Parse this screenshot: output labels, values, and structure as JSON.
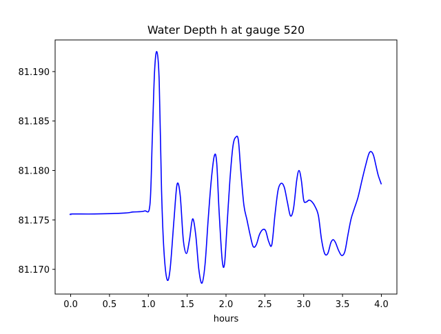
{
  "chart_data": {
    "type": "line",
    "title": "Water Depth h at gauge 520",
    "xlabel": "hours",
    "ylabel": "",
    "xlim": [
      -0.2,
      4.2
    ],
    "ylim": [
      81.1675,
      81.1932
    ],
    "x_ticks": [
      0.0,
      0.5,
      1.0,
      1.5,
      2.0,
      2.5,
      3.0,
      3.5,
      4.0
    ],
    "x_tick_labels": [
      "0.0",
      "0.5",
      "1.0",
      "1.5",
      "2.0",
      "2.5",
      "3.0",
      "3.5",
      "4.0"
    ],
    "y_ticks": [
      81.17,
      81.175,
      81.18,
      81.185,
      81.19
    ],
    "y_tick_labels": [
      "81.170",
      "81.175",
      "81.180",
      "81.185",
      "81.190"
    ],
    "grid": false,
    "legend": "none",
    "series": [
      {
        "color": "#0000ff",
        "x": [
          0.0,
          0.02,
          0.3,
          0.7,
          0.8,
          0.95,
          1.02,
          1.05,
          1.08,
          1.11,
          1.14,
          1.17,
          1.2,
          1.24,
          1.28,
          1.33,
          1.37,
          1.41,
          1.45,
          1.49,
          1.53,
          1.57,
          1.61,
          1.65,
          1.69,
          1.73,
          1.77,
          1.81,
          1.85,
          1.88,
          1.91,
          1.95,
          1.98,
          2.01,
          2.05,
          2.09,
          2.13,
          2.16,
          2.19,
          2.23,
          2.27,
          2.31,
          2.35,
          2.39,
          2.43,
          2.47,
          2.51,
          2.55,
          2.59,
          2.63,
          2.67,
          2.71,
          2.75,
          2.79,
          2.83,
          2.87,
          2.91,
          2.94,
          2.97,
          3.0,
          3.03,
          3.07,
          3.11,
          3.15,
          3.19,
          3.23,
          3.27,
          3.31,
          3.35,
          3.38,
          3.41,
          3.45,
          3.49,
          3.53,
          3.57,
          3.61,
          3.65,
          3.7,
          3.75,
          3.8,
          3.84,
          3.87,
          3.9,
          3.93,
          3.96,
          4.0
        ],
        "y": [
          81.1755,
          81.1756,
          81.1756,
          81.1757,
          81.1758,
          81.1759,
          81.1765,
          81.183,
          81.19,
          81.192,
          81.189,
          81.178,
          81.172,
          81.169,
          81.17,
          81.175,
          81.1786,
          81.1775,
          81.173,
          81.1716,
          81.173,
          81.1751,
          81.1735,
          81.17,
          81.1686,
          81.1705,
          81.175,
          81.179,
          81.1815,
          81.1808,
          81.176,
          81.171,
          81.1705,
          81.174,
          81.179,
          81.1825,
          81.1834,
          81.183,
          81.18,
          81.1765,
          81.175,
          81.1735,
          81.1723,
          81.1725,
          81.1735,
          81.174,
          81.1739,
          81.1728,
          81.1725,
          81.1755,
          81.178,
          81.1787,
          81.1783,
          81.1768,
          81.1754,
          81.1762,
          81.179,
          81.18,
          81.179,
          81.177,
          81.1768,
          81.177,
          81.1768,
          81.1763,
          81.1754,
          81.173,
          81.1716,
          81.1716,
          81.1727,
          81.173,
          81.1727,
          81.1719,
          81.1714,
          81.1718,
          81.1735,
          81.1751,
          81.1761,
          81.1773,
          81.179,
          81.1806,
          81.1817,
          81.1819,
          81.1815,
          81.1805,
          81.1795,
          81.1786
        ]
      }
    ]
  }
}
